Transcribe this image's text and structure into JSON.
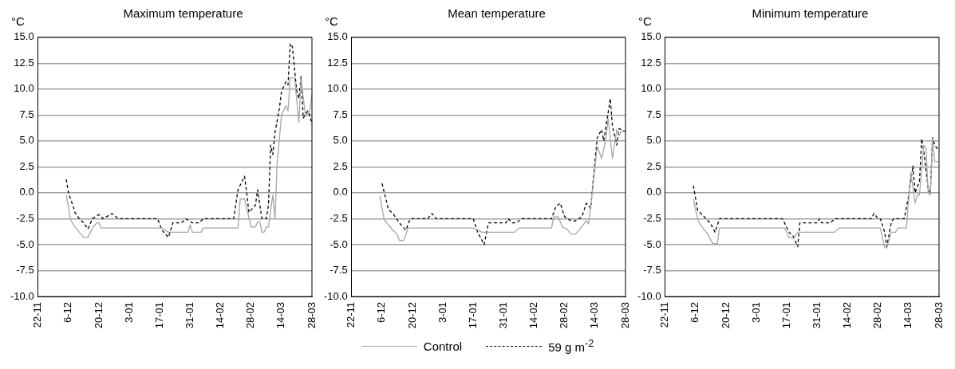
{
  "chart_data": [
    {
      "type": "line",
      "title": "Maximum temperature",
      "ylabel": "°C",
      "categories": [
        "22-11",
        null,
        null,
        null,
        null,
        null,
        null,
        null,
        null,
        null,
        null,
        null,
        null,
        null,
        "6-12",
        null,
        null,
        null,
        null,
        null,
        null,
        null,
        null,
        null,
        null,
        null,
        null,
        null,
        "20-12",
        null,
        null,
        null,
        null,
        null,
        null,
        null,
        null,
        null,
        null,
        null,
        null,
        null,
        "3-01",
        null,
        null,
        null,
        null,
        null,
        null,
        null,
        null,
        null,
        null,
        null,
        null,
        null,
        "17-01",
        null,
        null,
        null,
        null,
        null,
        null,
        null,
        null,
        null,
        null,
        null,
        null,
        null,
        "31-01",
        null,
        null,
        null,
        null,
        null,
        null,
        null,
        null,
        null,
        null,
        null,
        null,
        null,
        "14-02",
        null,
        null,
        null,
        null,
        null,
        null,
        null,
        null,
        null,
        null,
        null,
        null,
        null,
        "28-02",
        null,
        null,
        null,
        null,
        null,
        null,
        null,
        null,
        null,
        null,
        null,
        null,
        null,
        "14-03",
        null,
        null,
        null,
        null,
        null,
        null,
        null,
        null,
        null,
        null,
        null,
        null,
        null,
        "28-03"
      ],
      "ylim": [
        -10,
        15
      ],
      "yticks": [
        {
          "value": -10,
          "label": "-10.0"
        },
        {
          "value": -7.5,
          "label": "-7.5"
        },
        {
          "value": -5,
          "label": "-5.0"
        },
        {
          "value": -2.5,
          "label": "-2.5"
        },
        {
          "value": 0,
          "label": "0.0"
        },
        {
          "value": 2.5,
          "label": "2.5"
        },
        {
          "value": 5,
          "label": "5.0"
        },
        {
          "value": 7.5,
          "label": "7.5"
        },
        {
          "value": 10,
          "label": "10.0"
        },
        {
          "value": 12.5,
          "label": "12.5"
        },
        {
          "value": 15,
          "label": "15.0"
        }
      ],
      "grid": "y",
      "marker": "none",
      "series": [
        {
          "color": "#a6a6a6",
          "line_style": "solid",
          "values": [
            null,
            null,
            null,
            null,
            null,
            null,
            null,
            null,
            null,
            null,
            null,
            null,
            null,
            -0.2,
            null,
            -2.6,
            null,
            -3.3,
            null,
            -3.8,
            null,
            -4.3,
            null,
            -4.3,
            null,
            -3.4,
            null,
            -2.9,
            -2.9,
            -3.4,
            null,
            null,
            null,
            null,
            null,
            null,
            null,
            null,
            null,
            null,
            null,
            null,
            null,
            null,
            null,
            null,
            null,
            null,
            null,
            null,
            null,
            null,
            null,
            null,
            null,
            null,
            null,
            -3.4,
            null,
            null,
            -3.8,
            null,
            null,
            null,
            null,
            null,
            null,
            null,
            null,
            -3.8,
            -3.1,
            -3.8,
            null,
            null,
            null,
            -3.8,
            -3.4,
            null,
            null,
            null,
            null,
            null,
            null,
            null,
            null,
            null,
            null,
            null,
            null,
            null,
            null,
            null,
            -3.4,
            -0.6,
            null,
            -0.6,
            null,
            null,
            -3.3,
            null,
            -3.3,
            -2.8,
            -2.8,
            -3.8,
            -3.8,
            -3.3,
            -3.3,
            null,
            -0.2,
            -2.5,
            2.9,
            null,
            7.5,
            null,
            8.4,
            7.9,
            11.1,
            null,
            11.1,
            null,
            6.8,
            11.0,
            null,
            7.4,
            null,
            7.9,
            9.5
          ]
        },
        {
          "color": "#000000",
          "line_style": "dashed",
          "values": [
            null,
            null,
            null,
            null,
            null,
            null,
            null,
            null,
            null,
            null,
            null,
            null,
            null,
            1.3,
            0.0,
            null,
            -1.2,
            -1.9,
            null,
            -2.5,
            null,
            -2.9,
            null,
            -3.5,
            null,
            -2.5,
            null,
            null,
            -2.1,
            null,
            -2.5,
            null,
            null,
            null,
            -2.0,
            null,
            null,
            -2.5,
            null,
            null,
            null,
            null,
            null,
            null,
            null,
            null,
            null,
            null,
            null,
            null,
            null,
            null,
            null,
            null,
            null,
            -2.5,
            null,
            -3.6,
            null,
            null,
            -4.3,
            null,
            -2.9,
            null,
            null,
            null,
            -2.9,
            null,
            -2.5,
            null,
            null,
            -2.9,
            null,
            null,
            -2.9,
            null,
            -2.5,
            null,
            null,
            null,
            null,
            null,
            null,
            null,
            null,
            null,
            null,
            null,
            null,
            null,
            -2.5,
            null,
            0.3,
            null,
            null,
            1.6,
            0.0,
            -1.9,
            null,
            null,
            -1.2,
            0.3,
            null,
            -2.5,
            null,
            -2.5,
            -1.2,
            4.6,
            3.7,
            5.8,
            null,
            8.1,
            9.8,
            null,
            10.7,
            10.4,
            14.4,
            14.1,
            null,
            9.8,
            9.1,
            11.2,
            7.2,
            null,
            7.9,
            7.5,
            6.6
          ]
        }
      ]
    },
    {
      "type": "line",
      "title": "Mean temperature",
      "ylabel": "°C",
      "categories": [
        "22-11",
        null,
        null,
        null,
        null,
        null,
        null,
        null,
        null,
        null,
        null,
        null,
        null,
        null,
        "6-12",
        null,
        null,
        null,
        null,
        null,
        null,
        null,
        null,
        null,
        null,
        null,
        null,
        null,
        "20-12",
        null,
        null,
        null,
        null,
        null,
        null,
        null,
        null,
        null,
        null,
        null,
        null,
        null,
        "3-01",
        null,
        null,
        null,
        null,
        null,
        null,
        null,
        null,
        null,
        null,
        null,
        null,
        null,
        "17-01",
        null,
        null,
        null,
        null,
        null,
        null,
        null,
        null,
        null,
        null,
        null,
        null,
        null,
        "31-01",
        null,
        null,
        null,
        null,
        null,
        null,
        null,
        null,
        null,
        null,
        null,
        null,
        null,
        "14-02",
        null,
        null,
        null,
        null,
        null,
        null,
        null,
        null,
        null,
        null,
        null,
        null,
        null,
        "28-02",
        null,
        null,
        null,
        null,
        null,
        null,
        null,
        null,
        null,
        null,
        null,
        null,
        null,
        "14-03",
        null,
        null,
        null,
        null,
        null,
        null,
        null,
        null,
        null,
        null,
        null,
        null,
        null,
        "28-03"
      ],
      "ylim": [
        -10,
        15
      ],
      "yticks": [
        {
          "value": -10,
          "label": "-10.0"
        },
        {
          "value": -7.5,
          "label": "-7.5"
        },
        {
          "value": -5,
          "label": "-5.0"
        },
        {
          "value": -2.5,
          "label": "-2.5"
        },
        {
          "value": 0,
          "label": "0.0"
        },
        {
          "value": 2.5,
          "label": "2.5"
        },
        {
          "value": 5,
          "label": "5.0"
        },
        {
          "value": 7.5,
          "label": "7.5"
        },
        {
          "value": 10,
          "label": "10.0"
        },
        {
          "value": 12.5,
          "label": "12.5"
        },
        {
          "value": 15,
          "label": "15.0"
        }
      ],
      "grid": "y",
      "marker": "none",
      "legend": "bottom",
      "series": [
        {
          "name": "Control",
          "color": "#a6a6a6",
          "line_style": "solid",
          "values": [
            null,
            null,
            null,
            null,
            null,
            null,
            null,
            null,
            null,
            null,
            null,
            null,
            null,
            -0.3,
            null,
            -2.6,
            null,
            null,
            null,
            -3.6,
            null,
            -4.0,
            -4.6,
            null,
            -4.6,
            null,
            -3.4,
            null,
            -3.4,
            null,
            null,
            null,
            null,
            null,
            null,
            null,
            null,
            null,
            null,
            null,
            null,
            null,
            null,
            null,
            null,
            null,
            null,
            null,
            null,
            null,
            null,
            null,
            null,
            null,
            null,
            null,
            -3.4,
            null,
            null,
            null,
            -3.8,
            null,
            null,
            -3.8,
            null,
            null,
            null,
            null,
            null,
            null,
            null,
            null,
            null,
            null,
            null,
            -3.8,
            null,
            -3.4,
            null,
            null,
            null,
            null,
            null,
            null,
            null,
            null,
            null,
            null,
            null,
            null,
            null,
            null,
            -3.4,
            -2.3,
            null,
            -2.3,
            null,
            -3.3,
            null,
            -3.5,
            null,
            -4.0,
            null,
            -4.0,
            null,
            -3.5,
            null,
            null,
            -2.7,
            -3.0,
            null,
            0.6,
            null,
            4.5,
            null,
            3.3,
            null,
            5.2,
            7.2,
            null,
            3.3,
            null,
            6.1,
            5.5,
            5.9,
            null,
            5.9
          ]
        },
        {
          "name": "59 g m$^{-2}$",
          "color": "#000000",
          "line_style": "dashed",
          "values": [
            null,
            null,
            null,
            null,
            null,
            null,
            null,
            null,
            null,
            null,
            null,
            null,
            null,
            null,
            0.9,
            null,
            null,
            -1.6,
            null,
            -2.0,
            null,
            null,
            -2.9,
            null,
            null,
            -3.6,
            null,
            -2.5,
            null,
            null,
            null,
            null,
            null,
            null,
            null,
            -2.5,
            null,
            -2.0,
            null,
            -2.5,
            null,
            null,
            null,
            null,
            null,
            null,
            null,
            null,
            null,
            null,
            null,
            null,
            null,
            null,
            null,
            null,
            -2.5,
            null,
            -3.8,
            null,
            null,
            -5.0,
            null,
            -2.9,
            null,
            null,
            null,
            null,
            null,
            null,
            null,
            -2.9,
            -2.5,
            null,
            -2.9,
            null,
            -2.9,
            null,
            -2.5,
            null,
            null,
            null,
            null,
            null,
            null,
            null,
            null,
            null,
            null,
            null,
            null,
            null,
            -2.5,
            null,
            -1.3,
            null,
            -1.0,
            null,
            -2.3,
            null,
            null,
            -2.7,
            null,
            -2.7,
            null,
            null,
            -2.3,
            null,
            -1.0,
            null,
            -1.5,
            0.9,
            null,
            5.3,
            null,
            6.1,
            5.0,
            null,
            null,
            9.1,
            6.4,
            null,
            4.6,
            6.2,
            6.1,
            null,
            5.9
          ]
        }
      ]
    },
    {
      "type": "line",
      "title": "Minimum temperature",
      "ylabel": "°C",
      "categories": [
        "22-11",
        null,
        null,
        null,
        null,
        null,
        null,
        null,
        null,
        null,
        null,
        null,
        null,
        null,
        "6-12",
        null,
        null,
        null,
        null,
        null,
        null,
        null,
        null,
        null,
        null,
        null,
        null,
        null,
        "20-12",
        null,
        null,
        null,
        null,
        null,
        null,
        null,
        null,
        null,
        null,
        null,
        null,
        null,
        "3-01",
        null,
        null,
        null,
        null,
        null,
        null,
        null,
        null,
        null,
        null,
        null,
        null,
        null,
        "17-01",
        null,
        null,
        null,
        null,
        null,
        null,
        null,
        null,
        null,
        null,
        null,
        null,
        null,
        "31-01",
        null,
        null,
        null,
        null,
        null,
        null,
        null,
        null,
        null,
        null,
        null,
        null,
        null,
        "14-02",
        null,
        null,
        null,
        null,
        null,
        null,
        null,
        null,
        null,
        null,
        null,
        null,
        null,
        "28-02",
        null,
        null,
        null,
        null,
        null,
        null,
        null,
        null,
        null,
        null,
        null,
        null,
        null,
        "14-03",
        null,
        null,
        null,
        null,
        null,
        null,
        null,
        null,
        null,
        null,
        null,
        null,
        null,
        "28-03"
      ],
      "ylim": [
        -10,
        15
      ],
      "yticks": [
        {
          "value": -10,
          "label": "-10.0"
        },
        {
          "value": -7.5,
          "label": "-7.5"
        },
        {
          "value": -5,
          "label": "-5.0"
        },
        {
          "value": -2.5,
          "label": "-2.5"
        },
        {
          "value": 0,
          "label": "0.0"
        },
        {
          "value": 2.5,
          "label": "2.5"
        },
        {
          "value": 5,
          "label": "5.0"
        },
        {
          "value": 7.5,
          "label": "7.5"
        },
        {
          "value": 10,
          "label": "10.0"
        },
        {
          "value": 12.5,
          "label": "12.5"
        },
        {
          "value": 15,
          "label": "15.0"
        }
      ],
      "grid": "y",
      "marker": "none",
      "series": [
        {
          "color": "#a6a6a6",
          "line_style": "solid",
          "values": [
            null,
            null,
            null,
            null,
            null,
            null,
            null,
            null,
            null,
            null,
            null,
            null,
            null,
            -0.6,
            null,
            -2.6,
            null,
            -3.3,
            null,
            -3.8,
            null,
            null,
            -4.9,
            null,
            -4.9,
            -3.4,
            null,
            null,
            null,
            null,
            null,
            null,
            null,
            null,
            null,
            null,
            null,
            null,
            null,
            null,
            null,
            null,
            null,
            null,
            null,
            null,
            null,
            null,
            null,
            null,
            null,
            null,
            null,
            null,
            null,
            -3.4,
            null,
            -4.3,
            null,
            -4.4,
            null,
            -3.8,
            null,
            null,
            null,
            null,
            null,
            null,
            null,
            null,
            null,
            null,
            null,
            null,
            null,
            null,
            null,
            null,
            -3.8,
            null,
            -3.4,
            null,
            null,
            null,
            null,
            null,
            null,
            null,
            null,
            null,
            null,
            null,
            null,
            null,
            null,
            null,
            null,
            null,
            null,
            -3.4,
            null,
            -5.3,
            -5.3,
            null,
            -3.8,
            null,
            -3.8,
            -3.4,
            null,
            null,
            null,
            -3.4,
            null,
            2.0,
            null,
            -1.0,
            -0.2,
            -0.2,
            null,
            4.6,
            4.3,
            0.0,
            -0.2,
            5.2,
            3.0,
            null,
            3.0
          ]
        },
        {
          "color": "#000000",
          "line_style": "dashed",
          "values": [
            null,
            null,
            null,
            null,
            null,
            null,
            null,
            null,
            null,
            null,
            null,
            null,
            null,
            0.7,
            null,
            -1.7,
            null,
            null,
            -2.3,
            null,
            null,
            -3.0,
            null,
            -3.8,
            null,
            -2.5,
            null,
            null,
            null,
            null,
            null,
            null,
            null,
            null,
            null,
            null,
            null,
            null,
            null,
            null,
            null,
            null,
            null,
            null,
            null,
            null,
            null,
            null,
            null,
            null,
            null,
            null,
            null,
            null,
            -2.5,
            null,
            null,
            -3.8,
            null,
            -4.2,
            null,
            -5.2,
            -2.9,
            null,
            null,
            null,
            null,
            null,
            null,
            null,
            -2.9,
            -2.5,
            -2.9,
            null,
            null,
            null,
            -2.9,
            null,
            -2.5,
            null,
            null,
            null,
            null,
            null,
            null,
            null,
            null,
            null,
            null,
            null,
            null,
            null,
            null,
            null,
            null,
            -2.5,
            -2.0,
            null,
            -2.5,
            -2.5,
            null,
            -3.8,
            -5.2,
            null,
            -2.9,
            -2.5,
            null,
            null,
            null,
            null,
            -2.5,
            null,
            -0.3,
            null,
            2.6,
            0.0,
            null,
            1.1,
            5.2,
            4.0,
            null,
            0.4,
            0.0,
            5.3,
            4.6,
            4.3,
            4.3
          ]
        }
      ]
    }
  ]
}
